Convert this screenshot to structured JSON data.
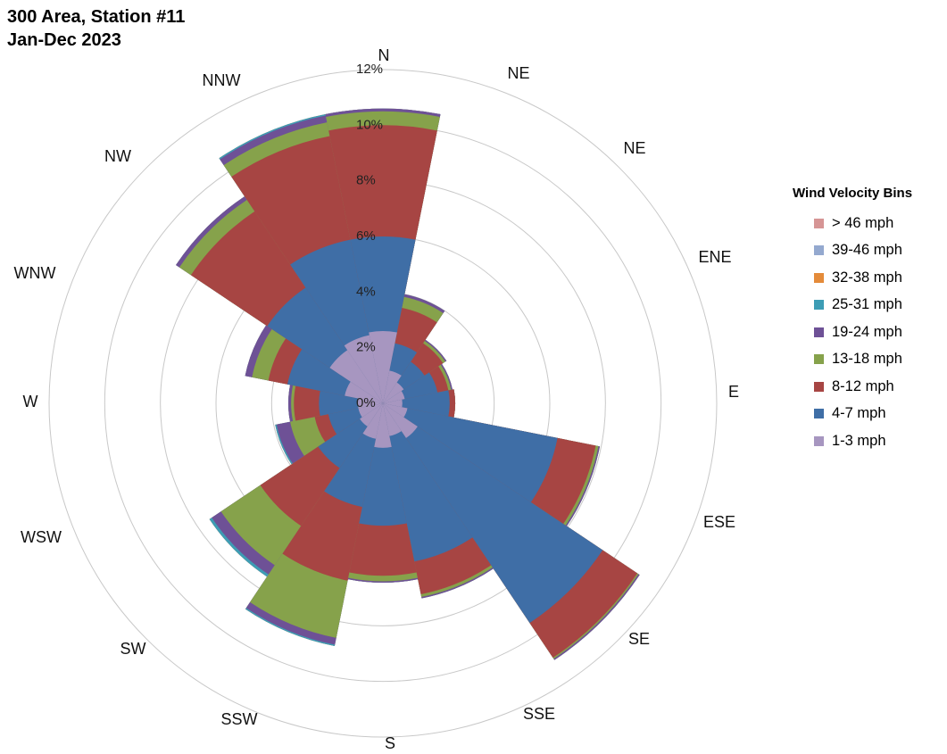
{
  "chart_data": {
    "type": "polar-bar",
    "title": [
      "300 Area, Station #11",
      "Jan-Dec 2023"
    ],
    "directions": [
      "N",
      "NE",
      "NE",
      "ENE",
      "E",
      "ESE",
      "SE",
      "SSE",
      "S",
      "SSW",
      "SW",
      "WSW",
      "W",
      "WNW",
      "NW",
      "NNW"
    ],
    "radial_ticks": [
      "0%",
      "2%",
      "4%",
      "6%",
      "8%",
      "10%",
      "12%"
    ],
    "rmax": 12,
    "stacked": true,
    "legend_title": "Wind Velocity Bins",
    "legend_position": "right",
    "series": [
      {
        "name": "1-3 mph",
        "color": "#a796c0",
        "values": [
          2.6,
          1.2,
          0.9,
          0.8,
          0.7,
          0.9,
          1.5,
          1.2,
          1.6,
          1.3,
          1.0,
          0.9,
          0.9,
          1.4,
          2.3,
          2.5
        ]
      },
      {
        "name": "4-7 mph",
        "color": "#3f6ea6",
        "values": [
          6.0,
          2.2,
          1.8,
          2.0,
          2.4,
          6.4,
          9.5,
          5.8,
          4.4,
          3.8,
          2.8,
          2.0,
          2.3,
          3.5,
          5.0,
          6.0
        ]
      },
      {
        "name": "8-12 mph",
        "color": "#a74543",
        "values": [
          10.0,
          3.5,
          2.6,
          2.4,
          2.6,
          7.8,
          11.0,
          7.0,
          6.2,
          6.5,
          5.3,
          2.5,
          3.2,
          4.2,
          8.3,
          9.8
        ]
      },
      {
        "name": "13-18 mph",
        "color": "#86a24b",
        "values": [
          10.5,
          3.9,
          2.7,
          2.5,
          2.6,
          7.9,
          11.05,
          7.1,
          6.4,
          8.6,
          7.0,
          3.4,
          3.3,
          4.8,
          8.8,
          10.3
        ]
      },
      {
        "name": "19-24 mph",
        "color": "#6e5196",
        "values": [
          10.6,
          4.0,
          2.75,
          2.55,
          2.6,
          7.95,
          11.1,
          7.15,
          6.45,
          8.85,
          7.4,
          3.9,
          3.4,
          5.05,
          8.95,
          10.55
        ]
      },
      {
        "name": "25-31 mph",
        "color": "#3d9db5",
        "values": [
          10.6,
          4.0,
          2.75,
          2.55,
          2.6,
          7.95,
          11.1,
          7.15,
          6.45,
          8.9,
          7.5,
          3.95,
          3.4,
          5.05,
          8.95,
          10.6
        ]
      },
      {
        "name": "32-38 mph",
        "color": "#e48b3a",
        "values": [
          10.6,
          4.0,
          2.75,
          2.55,
          2.6,
          7.95,
          11.1,
          7.15,
          6.45,
          8.9,
          7.5,
          3.95,
          3.4,
          5.05,
          8.95,
          10.6
        ]
      },
      {
        "name": "39-46 mph",
        "color": "#94a9cf",
        "values": [
          10.6,
          4.0,
          2.75,
          2.55,
          2.6,
          7.95,
          11.1,
          7.15,
          6.45,
          8.9,
          7.5,
          3.95,
          3.4,
          5.05,
          8.95,
          10.6
        ]
      },
      {
        "name": "> 46 mph",
        "color": "#d69595",
        "values": [
          10.6,
          4.0,
          2.75,
          2.55,
          2.6,
          7.95,
          11.1,
          7.15,
          6.45,
          8.9,
          7.5,
          3.95,
          3.4,
          5.05,
          8.95,
          10.6
        ]
      }
    ]
  }
}
